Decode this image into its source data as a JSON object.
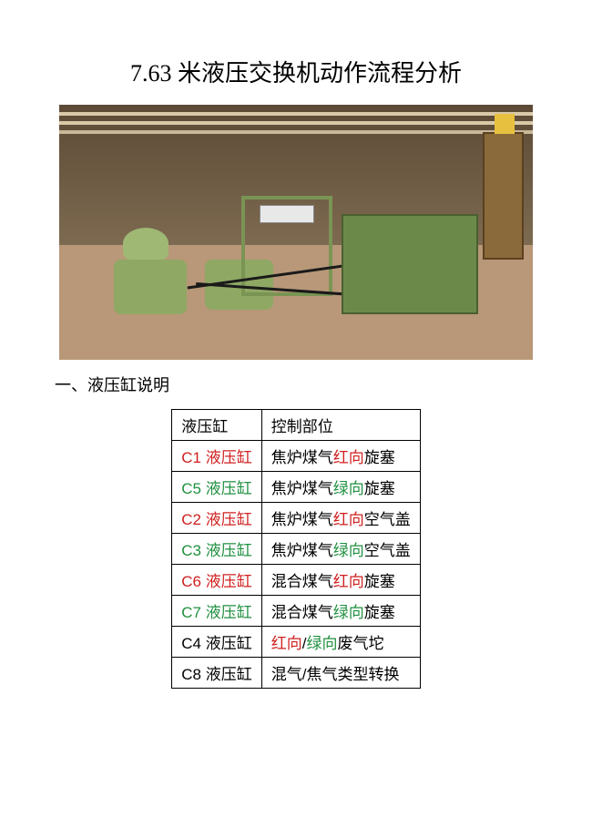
{
  "title": "7.63 米液压交换机动作流程分析",
  "section_heading": "一、液压缸说明",
  "table": {
    "columns": [
      "液压缸",
      "控制部位"
    ],
    "rows": [
      {
        "cylinder": {
          "prefix": "C1",
          "label": " 液压缸",
          "prefix_color": "red"
        },
        "parts": [
          {
            "text": "焦炉煤气",
            "color": "black"
          },
          {
            "text": "红向",
            "color": "red"
          },
          {
            "text": "旋塞",
            "color": "black"
          }
        ]
      },
      {
        "cylinder": {
          "prefix": "C5",
          "label": " 液压缸",
          "prefix_color": "green"
        },
        "parts": [
          {
            "text": "焦炉煤气",
            "color": "black"
          },
          {
            "text": "绿向",
            "color": "green"
          },
          {
            "text": "旋塞",
            "color": "black"
          }
        ]
      },
      {
        "cylinder": {
          "prefix": "C2",
          "label": " 液压缸",
          "prefix_color": "red"
        },
        "parts": [
          {
            "text": "焦炉煤气",
            "color": "black"
          },
          {
            "text": "红向",
            "color": "red"
          },
          {
            "text": "空气盖",
            "color": "black"
          }
        ]
      },
      {
        "cylinder": {
          "prefix": "C3",
          "label": " 液压缸",
          "prefix_color": "green"
        },
        "parts": [
          {
            "text": "焦炉煤气",
            "color": "black"
          },
          {
            "text": "绿向",
            "color": "green"
          },
          {
            "text": "空气盖",
            "color": "black"
          }
        ]
      },
      {
        "cylinder": {
          "prefix": "C6",
          "label": " 液压缸",
          "prefix_color": "red"
        },
        "parts": [
          {
            "text": "混合煤气",
            "color": "black"
          },
          {
            "text": "红向",
            "color": "red"
          },
          {
            "text": "旋塞",
            "color": "black"
          }
        ]
      },
      {
        "cylinder": {
          "prefix": "C7",
          "label": " 液压缸",
          "prefix_color": "green"
        },
        "parts": [
          {
            "text": "混合煤气",
            "color": "black"
          },
          {
            "text": "绿向",
            "color": "green"
          },
          {
            "text": "旋塞",
            "color": "black"
          }
        ]
      },
      {
        "cylinder": {
          "prefix": "C4",
          "label": " 液压缸",
          "prefix_color": "black"
        },
        "parts": [
          {
            "text": "红向",
            "color": "red"
          },
          {
            "text": "/",
            "color": "black"
          },
          {
            "text": "绿向",
            "color": "green"
          },
          {
            "text": "废气坨",
            "color": "black"
          }
        ]
      },
      {
        "cylinder": {
          "prefix": "C8",
          "label": " 液压缸",
          "prefix_color": "black"
        },
        "parts": [
          {
            "text": "混气/焦气类型转换",
            "color": "black"
          }
        ]
      }
    ]
  },
  "colors": {
    "red": "#d02020",
    "green": "#209040",
    "black": "#000000",
    "border": "#000000",
    "background": "#ffffff"
  }
}
